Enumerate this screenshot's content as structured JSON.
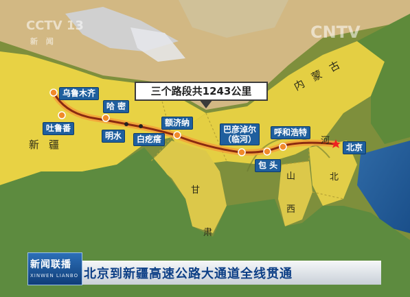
{
  "channel": {
    "logo_left": "CCTV 13",
    "logo_left_sub": "新 闻",
    "logo_right": "CNTV"
  },
  "map": {
    "callout": "三个路段共1243公里",
    "cities": {
      "urumqi": "乌鲁木齐",
      "turpan": "吐鲁番",
      "hami": "哈 密",
      "mingshui": "明水",
      "baijitan": "白疙瘩",
      "ejina": "额济纳",
      "bayannur": "巴彦淖尔\n（临河）",
      "baotou": "包 头",
      "hohhot": "呼和浩特",
      "beijing": "北京"
    },
    "regions": {
      "xinjiang": "新疆",
      "neimenggu": "内蒙古",
      "gansu": "甘",
      "su": "肃",
      "shan": "山",
      "xi": "西",
      "bei": "北",
      "he": "河"
    },
    "colors": {
      "route": "#8a2a10",
      "route_glow": "#f3a13a",
      "city_box": "#1f5f9e",
      "province_yellow": "#e6cf3f",
      "terrain_green": "#7e8f3c"
    }
  },
  "news": {
    "program_cn": "新闻联播",
    "program_en": "XINWEN LIANBO",
    "headline": "北京到新疆高速公路大通道全线贯通"
  }
}
